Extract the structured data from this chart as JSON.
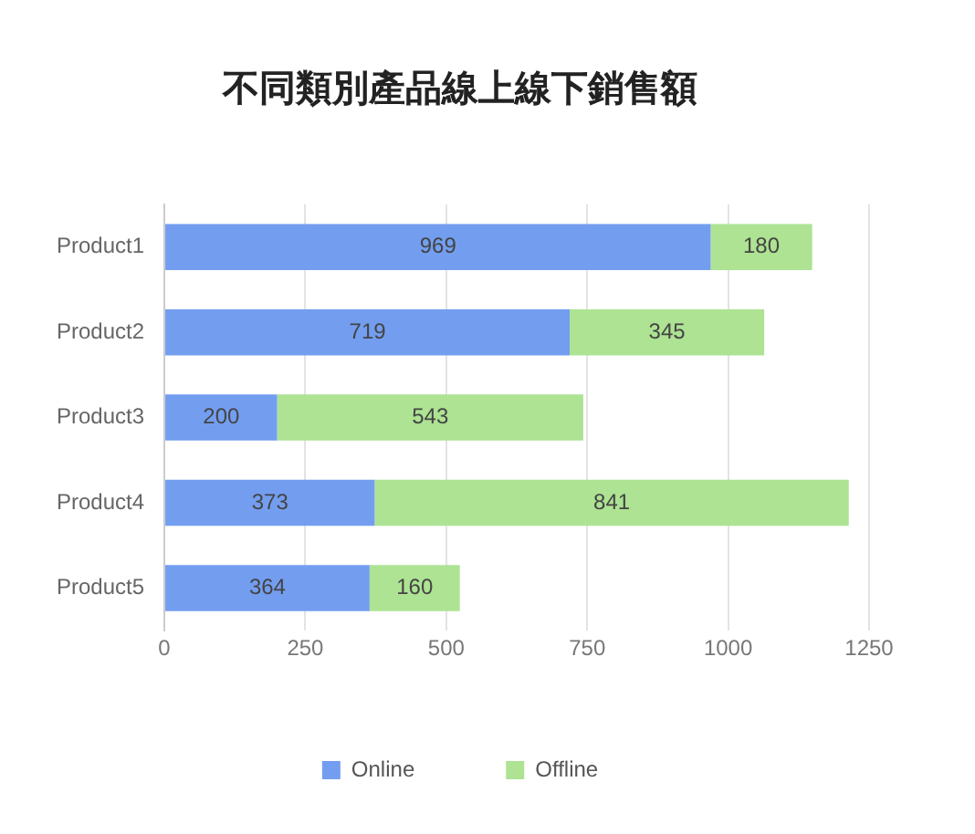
{
  "chart_data": {
    "type": "bar",
    "orientation": "horizontal",
    "stacked": true,
    "title": "不同類別產品線上線下銷售額",
    "categories": [
      "Product1",
      "Product2",
      "Product3",
      "Product4",
      "Product5"
    ],
    "series": [
      {
        "name": "Online",
        "color": "#739ef0",
        "values": [
          969,
          719,
          200,
          373,
          364
        ]
      },
      {
        "name": "Offline",
        "color": "#ade393",
        "values": [
          180,
          345,
          543,
          841,
          160
        ]
      }
    ],
    "xlim": [
      0,
      1250
    ],
    "xticks": [
      0,
      250,
      500,
      750,
      1000,
      1250
    ],
    "grid": "x",
    "legend": "bottom",
    "data_labels": true
  }
}
